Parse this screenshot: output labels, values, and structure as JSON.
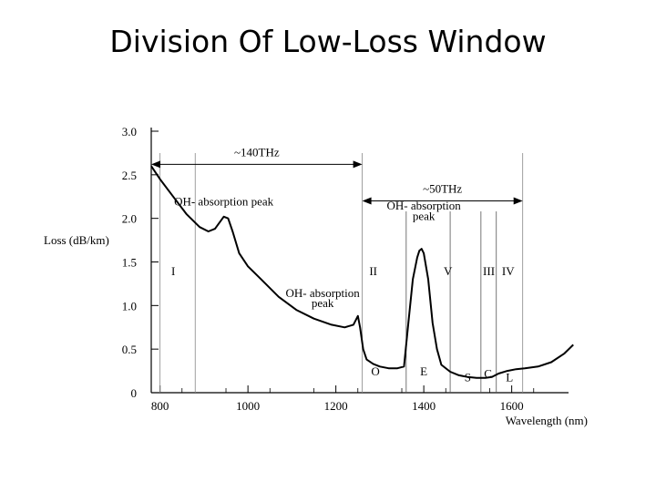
{
  "slide": {
    "title": "Division Of Low-Loss Window"
  },
  "chart_data": {
    "type": "line",
    "title": "",
    "xlabel": "Wavelength (nm)",
    "ylabel": "Loss (dB/km)",
    "xlim": [
      780,
      1750
    ],
    "ylim": [
      0,
      3.0
    ],
    "x_ticks": [
      "800",
      "1000",
      "1200",
      "1400",
      "1600"
    ],
    "y_ticks": [
      "3.0",
      "2.5",
      "2.0",
      "1.5",
      "1.0",
      "0.5",
      "0"
    ],
    "series": [
      {
        "name": "",
        "x": [
          780,
          800,
          830,
          860,
          890,
          910,
          925,
          935,
          945,
          955,
          965,
          980,
          1000,
          1030,
          1070,
          1110,
          1150,
          1190,
          1220,
          1240,
          1250,
          1255,
          1262,
          1270,
          1285,
          1300,
          1320,
          1340,
          1355,
          1365,
          1375,
          1385,
          1390,
          1395,
          1400,
          1410,
          1420,
          1430,
          1440,
          1460,
          1480,
          1500,
          1520,
          1540,
          1555,
          1570,
          1590,
          1610,
          1630,
          1660,
          1690,
          1720,
          1740
        ],
        "y": [
          2.6,
          2.45,
          2.25,
          2.05,
          1.9,
          1.85,
          1.88,
          1.95,
          2.02,
          2.0,
          1.85,
          1.6,
          1.45,
          1.3,
          1.1,
          0.95,
          0.85,
          0.78,
          0.75,
          0.78,
          0.88,
          0.75,
          0.5,
          0.38,
          0.33,
          0.3,
          0.28,
          0.28,
          0.3,
          0.8,
          1.3,
          1.55,
          1.63,
          1.65,
          1.6,
          1.3,
          0.8,
          0.5,
          0.32,
          0.24,
          0.2,
          0.18,
          0.17,
          0.17,
          0.18,
          0.22,
          0.25,
          0.27,
          0.28,
          0.3,
          0.35,
          0.45,
          0.55
        ]
      }
    ],
    "band_boundaries_nm": [
      1260,
      1360,
      1460,
      1530,
      1565,
      1625
    ],
    "window_lines_nm": [
      800,
      880,
      1260,
      1625
    ],
    "annotations": {
      "span1": {
        "text": "~140THz",
        "from_nm": 780,
        "to_nm": 1260,
        "y": 2.62
      },
      "span2": {
        "text": "~50THz",
        "from_nm": 1260,
        "to_nm": 1625,
        "y": 2.2
      },
      "peak1": {
        "text": "OH- absorption peak",
        "x_nm": 945,
        "y": 2.15
      },
      "peak2_line1": {
        "text": "OH- absorption",
        "x_nm": 1400,
        "y": 2.1
      },
      "peak2_line2": {
        "text": "peak",
        "x_nm": 1400,
        "y": 1.98
      },
      "peak3_line1": {
        "text": "OH- absorption",
        "x_nm": 1170,
        "y": 1.1
      },
      "peak3_line2": {
        "text": "peak",
        "x_nm": 1170,
        "y": 0.98
      }
    },
    "window_labels": [
      {
        "text": "I",
        "x_nm": 830,
        "y": 1.35
      },
      {
        "text": "II",
        "x_nm": 1285,
        "y": 1.35
      },
      {
        "text": "V",
        "x_nm": 1455,
        "y": 1.35
      },
      {
        "text": "III",
        "x_nm": 1548,
        "y": 1.35
      },
      {
        "text": "IV",
        "x_nm": 1592,
        "y": 1.35
      }
    ],
    "band_labels": [
      {
        "text": "O",
        "x_nm": 1290,
        "y": 0.2
      },
      {
        "text": "E",
        "x_nm": 1400,
        "y": 0.2
      },
      {
        "text": "S",
        "x_nm": 1500,
        "y": 0.13
      },
      {
        "text": "C",
        "x_nm": 1546,
        "y": 0.17
      },
      {
        "text": "L",
        "x_nm": 1595,
        "y": 0.13
      }
    ]
  }
}
